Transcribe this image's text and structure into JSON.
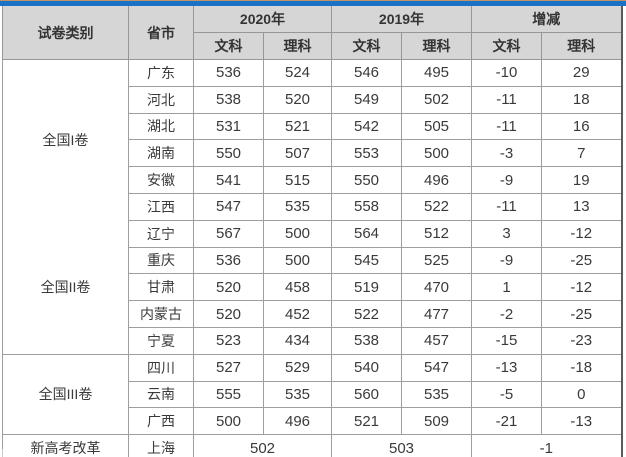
{
  "topbar": {
    "accent_line_color": "#be9467",
    "bar_color": "#1b72c4"
  },
  "table": {
    "header": {
      "category": "试卷类别",
      "province": "省市",
      "year_groups": [
        "2020年",
        "2019年",
        "增减"
      ],
      "sub_labels": [
        "文科",
        "理科"
      ]
    },
    "groups": [
      {
        "category": "全国I卷",
        "rows": [
          {
            "province": "广东",
            "scores": [
              "536",
              "524",
              "546",
              "495",
              "-10",
              "29"
            ]
          },
          {
            "province": "河北",
            "scores": [
              "538",
              "520",
              "549",
              "502",
              "-11",
              "18"
            ]
          },
          {
            "province": "湖北",
            "scores": [
              "531",
              "521",
              "542",
              "505",
              "-11",
              "16"
            ]
          },
          {
            "province": "湖南",
            "scores": [
              "550",
              "507",
              "553",
              "500",
              "-3",
              "7"
            ]
          },
          {
            "province": "安徽",
            "scores": [
              "541",
              "515",
              "550",
              "496",
              "-9",
              "19"
            ]
          },
          {
            "province": "江西",
            "scores": [
              "547",
              "535",
              "558",
              "522",
              "-11",
              "13"
            ]
          }
        ]
      },
      {
        "category": "全国II卷",
        "rows": [
          {
            "province": "辽宁",
            "scores": [
              "567",
              "500",
              "564",
              "512",
              "3",
              "-12"
            ]
          },
          {
            "province": "重庆",
            "scores": [
              "536",
              "500",
              "545",
              "525",
              "-9",
              "-25"
            ]
          },
          {
            "province": "甘肃",
            "scores": [
              "520",
              "458",
              "519",
              "470",
              "1",
              "-12"
            ]
          },
          {
            "province": "内蒙古",
            "scores": [
              "520",
              "452",
              "522",
              "477",
              "-2",
              "-25"
            ]
          },
          {
            "province": "宁夏",
            "scores": [
              "523",
              "434",
              "538",
              "457",
              "-15",
              "-23"
            ]
          }
        ]
      },
      {
        "category": "全国III卷",
        "rows": [
          {
            "province": "四川",
            "scores": [
              "527",
              "529",
              "540",
              "547",
              "-13",
              "-18"
            ]
          },
          {
            "province": "云南",
            "scores": [
              "555",
              "535",
              "560",
              "535",
              "-5",
              "0"
            ]
          },
          {
            "province": "广西",
            "scores": [
              "500",
              "496",
              "521",
              "509",
              "-21",
              "-13"
            ]
          }
        ]
      }
    ],
    "special_row": {
      "category": "新高考改革",
      "province": "上海",
      "merged_scores": [
        "502",
        "503",
        "-1"
      ]
    }
  },
  "chart_data": {
    "type": "table",
    "title": "",
    "columns": [
      "试卷类别",
      "省市",
      "2020年 文科",
      "2020年 理科",
      "2019年 文科",
      "2019年 理科",
      "增减 文科",
      "增减 理科"
    ],
    "rows": [
      [
        "全国I卷",
        "广东",
        536,
        524,
        546,
        495,
        -10,
        29
      ],
      [
        "全国I卷",
        "河北",
        538,
        520,
        549,
        502,
        -11,
        18
      ],
      [
        "全国I卷",
        "湖北",
        531,
        521,
        542,
        505,
        -11,
        16
      ],
      [
        "全国I卷",
        "湖南",
        550,
        507,
        553,
        500,
        -3,
        7
      ],
      [
        "全国I卷",
        "安徽",
        541,
        515,
        550,
        496,
        -9,
        19
      ],
      [
        "全国I卷",
        "江西",
        547,
        535,
        558,
        522,
        -11,
        13
      ],
      [
        "全国II卷",
        "辽宁",
        567,
        500,
        564,
        512,
        3,
        -12
      ],
      [
        "全国II卷",
        "重庆",
        536,
        500,
        545,
        525,
        -9,
        -25
      ],
      [
        "全国II卷",
        "甘肃",
        520,
        458,
        519,
        470,
        1,
        -12
      ],
      [
        "全国II卷",
        "内蒙古",
        520,
        452,
        522,
        477,
        -2,
        -25
      ],
      [
        "全国II卷",
        "宁夏",
        523,
        434,
        538,
        457,
        -15,
        -23
      ],
      [
        "全国III卷",
        "四川",
        527,
        529,
        540,
        547,
        -13,
        -18
      ],
      [
        "全国III卷",
        "云南",
        555,
        535,
        560,
        535,
        -5,
        0
      ],
      [
        "全国III卷",
        "广西",
        500,
        496,
        521,
        509,
        -21,
        -13
      ],
      [
        "新高考改革",
        "上海",
        502,
        502,
        503,
        503,
        -1,
        -1
      ]
    ],
    "notes": "上海 row shows single merged values per year group: 2020=502, 2019=503, 增减=-1"
  }
}
